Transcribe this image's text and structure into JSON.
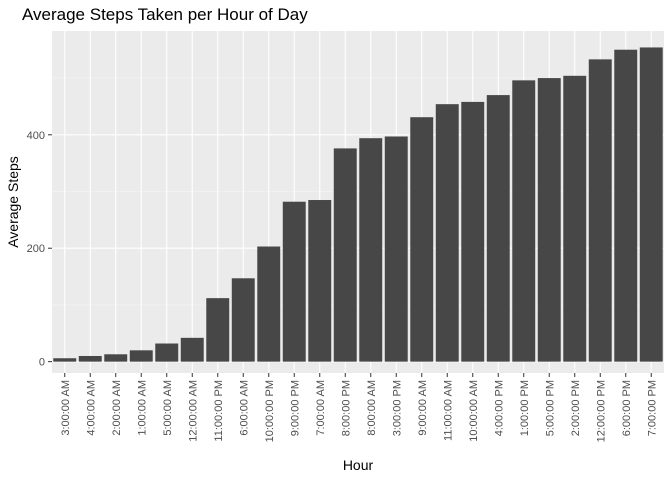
{
  "chart_data": {
    "type": "bar",
    "title": "Average Steps Taken per Hour of Day",
    "xlabel": "Hour",
    "ylabel": "Average Steps",
    "categories": [
      "3:00:00 AM",
      "4:00:00 AM",
      "2:00:00 AM",
      "1:00:00 AM",
      "5:00:00 AM",
      "12:00:00 AM",
      "11:00:00 PM",
      "6:00:00 AM",
      "10:00:00 PM",
      "9:00:00 PM",
      "7:00:00 AM",
      "8:00:00 PM",
      "8:00:00 AM",
      "3:00:00 PM",
      "9:00:00 AM",
      "11:00:00 AM",
      "10:00:00 AM",
      "4:00:00 PM",
      "1:00:00 PM",
      "5:00:00 PM",
      "2:00:00 PM",
      "12:00:00 PM",
      "6:00:00 PM",
      "7:00:00 PM"
    ],
    "values": [
      6,
      10,
      13,
      20,
      32,
      42,
      112,
      147,
      203,
      282,
      285,
      376,
      394,
      397,
      431,
      454,
      458,
      470,
      496,
      500,
      504,
      533,
      550,
      554
    ],
    "ylim": [
      -20,
      583
    ],
    "yticks": [
      0,
      200,
      400
    ],
    "grid": true,
    "bar_color": "#474747",
    "panel_color": "#ebebeb"
  }
}
